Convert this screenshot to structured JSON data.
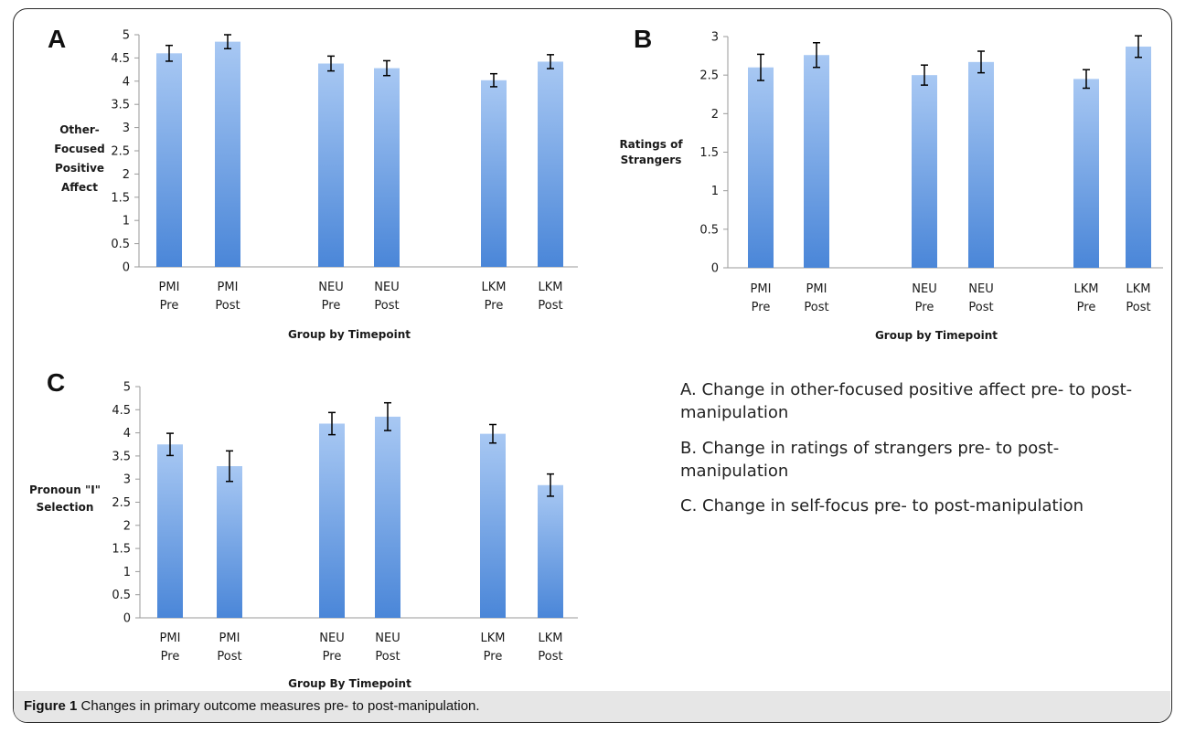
{
  "caption": {
    "label": "Figure 1",
    "text": "Changes in primary outcome measures pre- to post-manipulation."
  },
  "legend": {
    "items": [
      "A. Change in other-focused positive affect pre- to post-manipulation",
      "B. Change in ratings of strangers pre- to post-manipulation",
      "C. Change in self-focus pre- to post-manipulation"
    ]
  },
  "colors": {
    "bar_top": "#a8c8f3",
    "bar_bottom": "#4a86d8",
    "axis": "#9a9a9a",
    "error_bar": "#000000"
  },
  "chart_data": [
    {
      "type": "bar",
      "panel": "A",
      "ylabel_lines": [
        "Other-",
        "Focused",
        "Positive",
        "Affect"
      ],
      "xlabel": "Group by Timepoint",
      "categories": [
        [
          "PMI",
          "Pre"
        ],
        [
          "PMI",
          "Post"
        ],
        [
          "NEU",
          "Pre"
        ],
        [
          "NEU",
          "Post"
        ],
        [
          "LKM",
          "Pre"
        ],
        [
          "LKM",
          "Post"
        ]
      ],
      "values": [
        4.6,
        4.85,
        4.38,
        4.28,
        4.02,
        4.42
      ],
      "errors": [
        0.17,
        0.15,
        0.16,
        0.16,
        0.14,
        0.15
      ],
      "ylim": [
        0,
        5
      ],
      "yticks": [
        "0",
        "0.5",
        "1",
        "1.5",
        "2",
        "2.5",
        "3",
        "3.5",
        "4",
        "4.5",
        "5"
      ]
    },
    {
      "type": "bar",
      "panel": "B",
      "ylabel_lines": [
        "Ratings of",
        "Strangers"
      ],
      "xlabel": "Group by Timepoint",
      "categories": [
        [
          "PMI",
          "Pre"
        ],
        [
          "PMI",
          "Post"
        ],
        [
          "NEU",
          "Pre"
        ],
        [
          "NEU",
          "Post"
        ],
        [
          "LKM",
          "Pre"
        ],
        [
          "LKM",
          "Post"
        ]
      ],
      "values": [
        2.6,
        2.76,
        2.5,
        2.67,
        2.45,
        2.87
      ],
      "errors": [
        0.17,
        0.16,
        0.13,
        0.14,
        0.12,
        0.14
      ],
      "ylim": [
        0,
        3
      ],
      "yticks": [
        "0",
        "0.5",
        "1",
        "1.5",
        "2",
        "2.5",
        "3"
      ]
    },
    {
      "type": "bar",
      "panel": "C",
      "ylabel_lines": [
        "Pronoun \"I\"",
        "Selection"
      ],
      "xlabel": "Group By Timepoint",
      "categories": [
        [
          "PMI",
          "Pre"
        ],
        [
          "PMI",
          "Post"
        ],
        [
          "NEU",
          "Pre"
        ],
        [
          "NEU",
          "Post"
        ],
        [
          "LKM",
          "Pre"
        ],
        [
          "LKM",
          "Post"
        ]
      ],
      "values": [
        3.75,
        3.28,
        4.2,
        4.35,
        3.98,
        2.87
      ],
      "errors": [
        0.24,
        0.33,
        0.24,
        0.3,
        0.2,
        0.24
      ],
      "ylim": [
        0,
        5
      ],
      "yticks": [
        "0",
        "0.5",
        "1",
        "1.5",
        "2",
        "2.5",
        "3",
        "3.5",
        "4",
        "4.5",
        "5"
      ]
    }
  ]
}
